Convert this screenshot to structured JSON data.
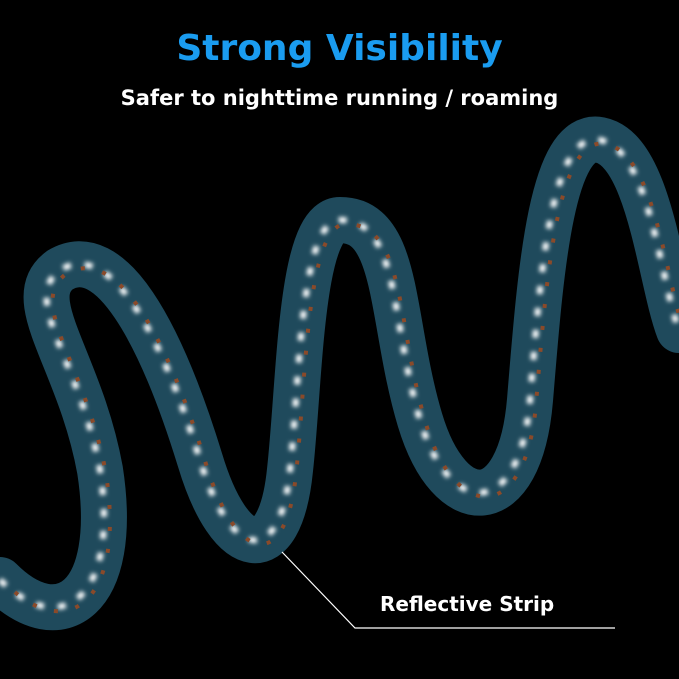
{
  "header": {
    "title": "Strong Visibility",
    "subtitle": "Safer to nighttime running / roaming"
  },
  "callout": {
    "label": "Reflective Strip"
  },
  "colors": {
    "title": "#1a9cf0",
    "rope": "#1f4a5c",
    "reflective": "#ffffff",
    "accent": "#8a4a2a"
  }
}
